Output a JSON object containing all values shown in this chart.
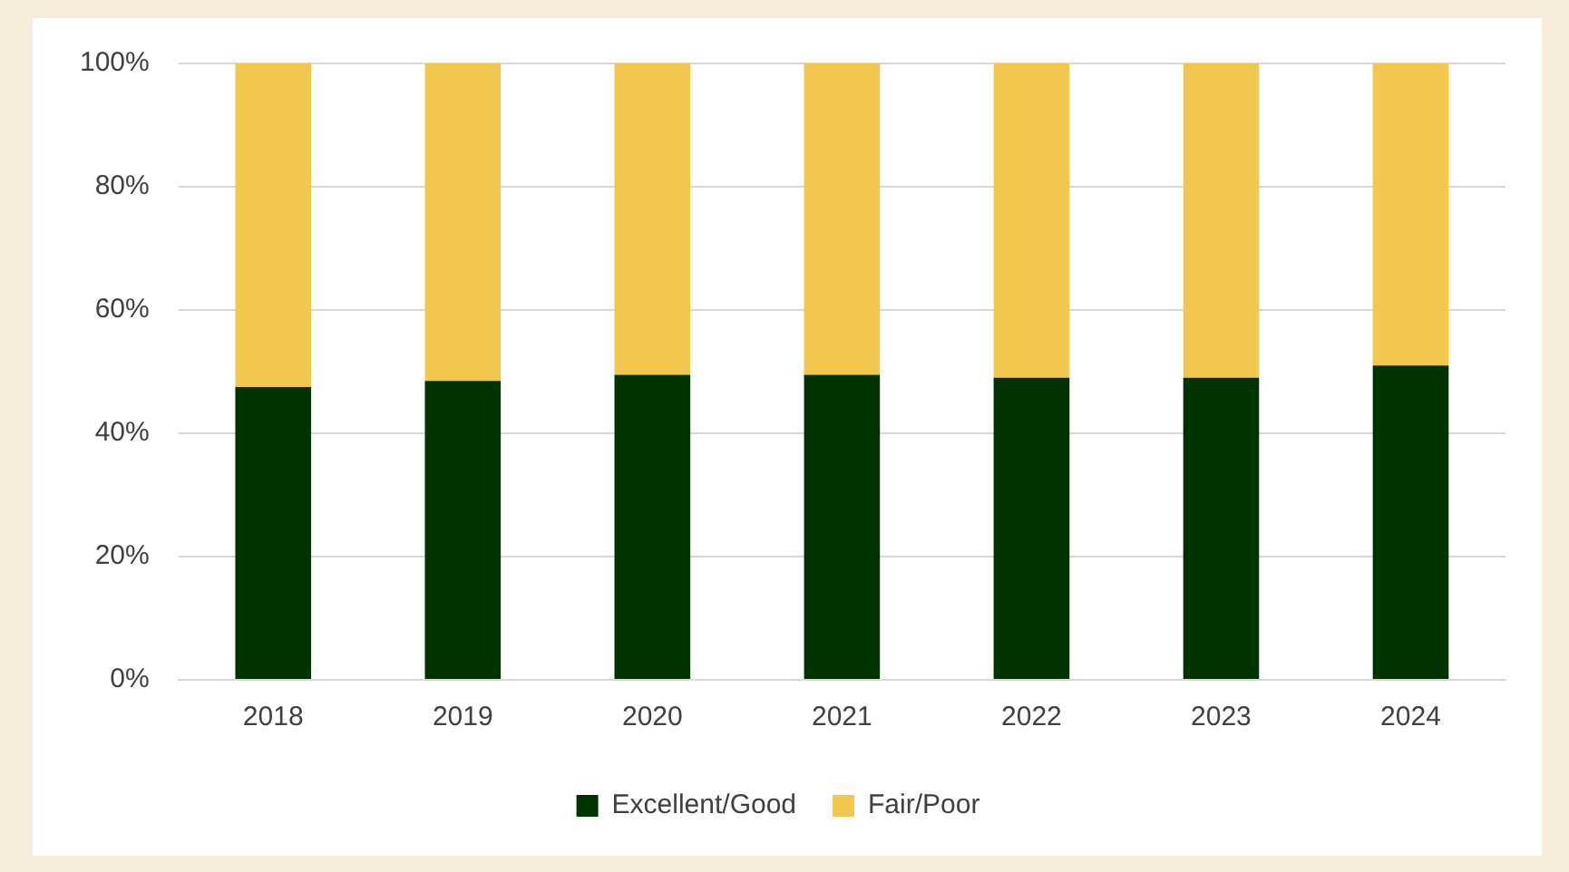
{
  "chart_data": {
    "type": "bar",
    "stacked": true,
    "categories": [
      "2018",
      "2019",
      "2020",
      "2021",
      "2022",
      "2023",
      "2024"
    ],
    "series": [
      {
        "name": "Excellent/Good",
        "color": "#003300",
        "values": [
          47.5,
          48.5,
          49.5,
          49.5,
          49,
          49,
          51
        ]
      },
      {
        "name": "Fair/Poor",
        "color": "#f2c750",
        "values": [
          52.5,
          51.5,
          50.5,
          50.5,
          51,
          51,
          49
        ]
      }
    ],
    "ylim": [
      0,
      100
    ],
    "yticks": [
      {
        "value": 0,
        "label": "0%"
      },
      {
        "value": 20,
        "label": "20%"
      },
      {
        "value": 40,
        "label": "40%"
      },
      {
        "value": 60,
        "label": "60%"
      },
      {
        "value": 80,
        "label": "80%"
      },
      {
        "value": 100,
        "label": "100%"
      }
    ],
    "grid": "y",
    "legend": "bottom"
  }
}
